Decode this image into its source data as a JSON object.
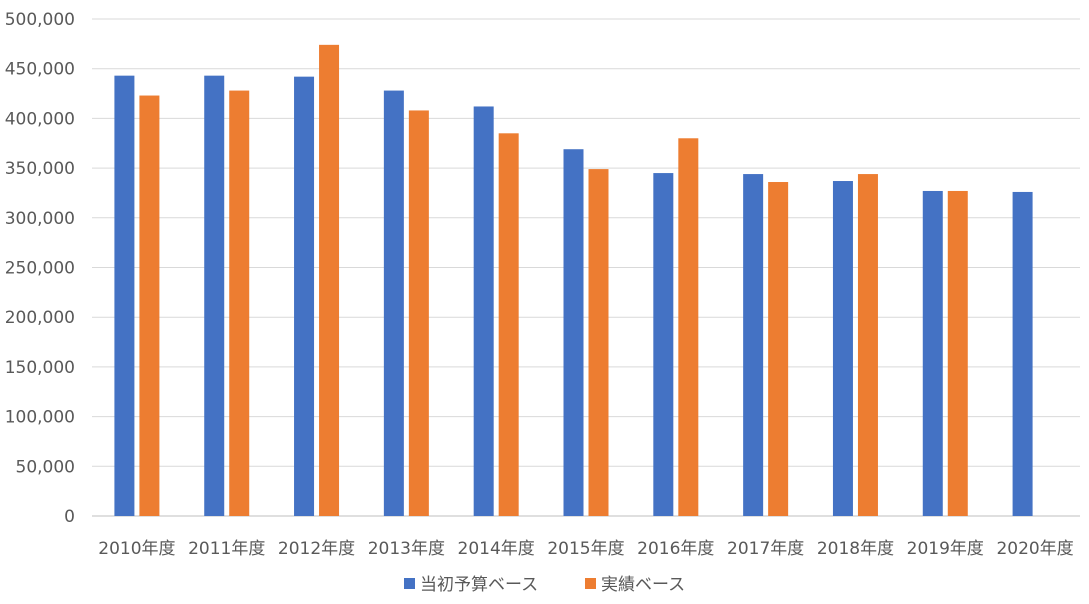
{
  "chart_data": {
    "type": "bar",
    "title": "",
    "xlabel": "",
    "ylabel": "",
    "ylim": [
      0,
      500000
    ],
    "yticks": [
      "0",
      "50,000",
      "100,000",
      "150,000",
      "200,000",
      "250,000",
      "300,000",
      "350,000",
      "400,000",
      "450,000",
      "500,000"
    ],
    "grid": true,
    "legend_position": "bottom",
    "categories": [
      "2010年度",
      "2011年度",
      "2012年度",
      "2013年度",
      "2014年度",
      "2015年度",
      "2016年度",
      "2017年度",
      "2018年度",
      "2019年度",
      "2020年度"
    ],
    "series": [
      {
        "name": "当初予算ベース",
        "color": "#4472C4",
        "values": [
          443000,
          443000,
          442000,
          428000,
          412000,
          369000,
          345000,
          344000,
          337000,
          327000,
          326000
        ]
      },
      {
        "name": "実績ベース",
        "color": "#ED7D31",
        "values": [
          423000,
          428000,
          474000,
          408000,
          385000,
          349000,
          380000,
          336000,
          344000,
          327000,
          null
        ]
      }
    ]
  }
}
